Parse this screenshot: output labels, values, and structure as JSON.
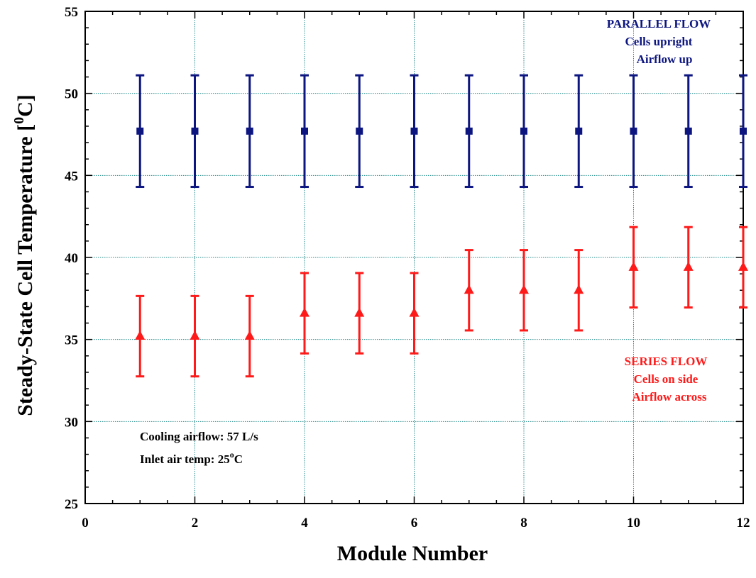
{
  "chart_data": {
    "type": "scatter",
    "xlabel": "Module Number",
    "ylabel_main": "Steady-State Cell Temperature  [",
    "ylabel_sup": "0",
    "ylabel_end": "C]",
    "xlim": [
      0,
      12
    ],
    "ylim": [
      25,
      55
    ],
    "x_ticks": [
      0,
      2,
      4,
      6,
      8,
      10,
      12
    ],
    "y_ticks": [
      25,
      30,
      35,
      40,
      45,
      50,
      55
    ],
    "grid": true,
    "series": [
      {
        "name": "PARALLEL FLOW",
        "color": "#0d1680",
        "marker": "square",
        "x": [
          1,
          2,
          3,
          4,
          5,
          6,
          7,
          8,
          9,
          10,
          11,
          12
        ],
        "y": [
          47.7,
          47.7,
          47.7,
          47.7,
          47.7,
          47.7,
          47.7,
          47.7,
          47.7,
          47.7,
          47.7,
          47.7
        ],
        "err": [
          3.4,
          3.4,
          3.4,
          3.4,
          3.4,
          3.4,
          3.4,
          3.4,
          3.4,
          3.4,
          3.4,
          3.4
        ]
      },
      {
        "name": "SERIES FLOW",
        "color": "#ff1a1a",
        "marker": "triangle",
        "x": [
          1,
          2,
          3,
          4,
          5,
          6,
          7,
          8,
          9,
          10,
          11,
          12
        ],
        "y": [
          35.2,
          35.2,
          35.2,
          36.6,
          36.6,
          36.6,
          38.0,
          38.0,
          38.0,
          39.4,
          39.4,
          39.4
        ],
        "err": [
          2.45,
          2.45,
          2.45,
          2.45,
          2.45,
          2.45,
          2.45,
          2.45,
          2.45,
          2.45,
          2.45,
          2.45
        ]
      }
    ],
    "annotations": {
      "parallel": [
        "PARALLEL FLOW",
        "Cells upright",
        "Airflow up"
      ],
      "series": [
        "SERIES FLOW",
        "Cells on side",
        "Airflow across"
      ],
      "conditions": {
        "line1": "Cooling airflow:  57 L/s",
        "line2_a": "Inlet air temp:    25",
        "line2_sup": "o",
        "line2_b": "C"
      }
    }
  }
}
